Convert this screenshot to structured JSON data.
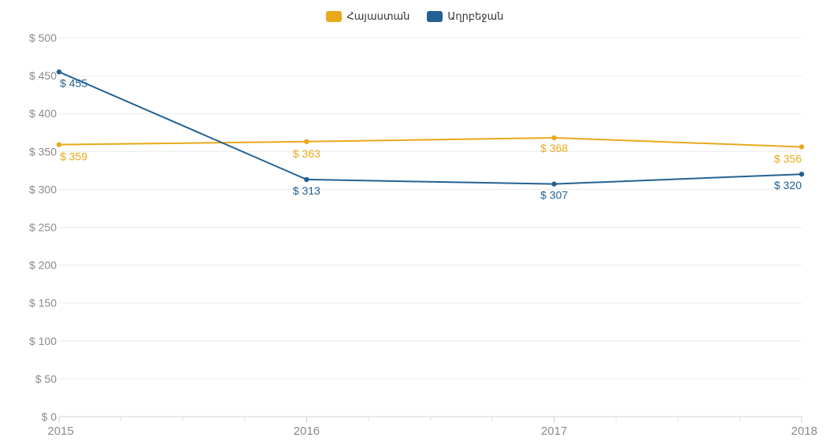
{
  "chart_data": {
    "type": "line",
    "x": [
      "2015",
      "2016",
      "2017",
      "2018"
    ],
    "y_ticks": [
      "$ 0",
      "$ 50",
      "$ 100",
      "$ 150",
      "$ 200",
      "$ 250",
      "$ 300",
      "$ 350",
      "$ 400",
      "$ 450",
      "$ 500"
    ],
    "ylim": [
      0,
      500
    ],
    "grid": true,
    "legend_position": "top-center",
    "series": [
      {
        "name": "Հայաստան",
        "color": "#E8A91B",
        "values": [
          359,
          363,
          368,
          356
        ],
        "labels": [
          "$ 359",
          "$ 363",
          "$ 368",
          "$ 356"
        ]
      },
      {
        "name": "Աղրբեջան",
        "color": "#236192",
        "values": [
          455,
          313,
          307,
          320
        ],
        "labels": [
          "$ 455",
          "$ 313",
          "$ 307",
          "$ 320"
        ]
      }
    ]
  }
}
